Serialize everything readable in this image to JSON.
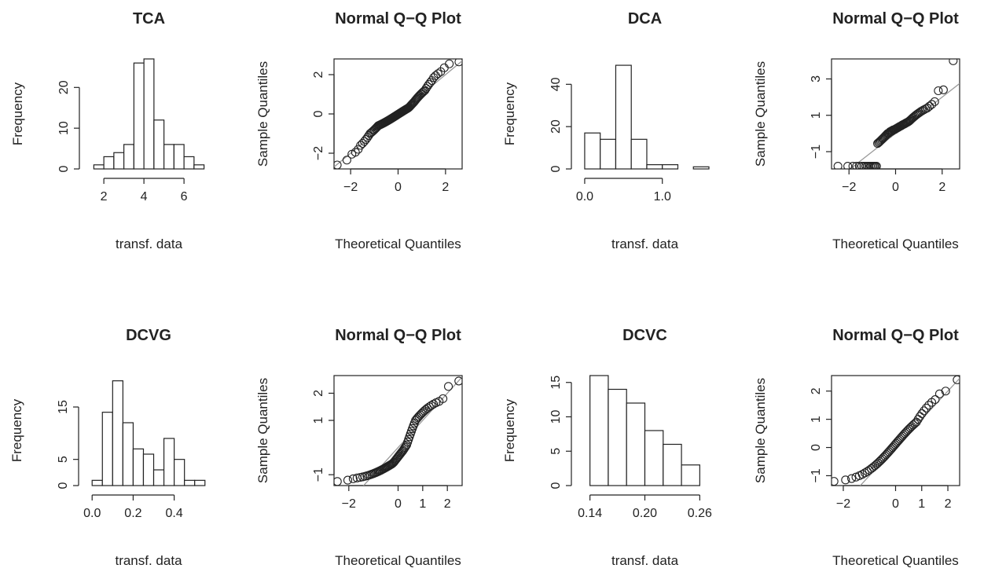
{
  "chart_data": [
    {
      "type": "bar",
      "title": "TCA",
      "xlabel": "transf. data",
      "ylabel": "Frequency",
      "bins": [
        [
          1.5,
          2.0
        ],
        [
          2.0,
          2.5
        ],
        [
          2.5,
          3.0
        ],
        [
          3.0,
          3.5
        ],
        [
          3.5,
          4.0
        ],
        [
          4.0,
          4.5
        ],
        [
          4.5,
          5.0
        ],
        [
          5.0,
          5.5
        ],
        [
          5.5,
          6.0
        ],
        [
          6.0,
          6.5
        ],
        [
          6.5,
          7.0
        ]
      ],
      "values": [
        1,
        3,
        4,
        6,
        26,
        27,
        12,
        6,
        6,
        3,
        1
      ],
      "xlim": [
        1.25,
        7.25
      ],
      "ylim": [
        0,
        27
      ],
      "xticks": [
        2,
        4,
        6
      ],
      "yticks": [
        0,
        10,
        20
      ]
    },
    {
      "type": "scatter",
      "title": "Normal Q−Q Plot",
      "xlabel": "Theoretical Quantiles",
      "ylabel": "Sample Quantiles",
      "qq_sample": [
        -2.6,
        -2.35,
        -2.05,
        -1.95,
        -1.8,
        -1.6,
        -1.5,
        -1.4,
        -1.3,
        -1.2,
        -1.1,
        -1.0,
        -0.95,
        -0.9,
        -0.85,
        -0.8,
        -0.75,
        -0.7,
        -0.65,
        -0.6,
        -0.58,
        -0.56,
        -0.54,
        -0.52,
        -0.5,
        -0.48,
        -0.46,
        -0.44,
        -0.42,
        -0.4,
        -0.38,
        -0.36,
        -0.34,
        -0.32,
        -0.3,
        -0.28,
        -0.26,
        -0.24,
        -0.22,
        -0.2,
        -0.18,
        -0.16,
        -0.14,
        -0.12,
        -0.1,
        -0.08,
        -0.06,
        -0.04,
        -0.02,
        0.0,
        0.02,
        0.04,
        0.06,
        0.08,
        0.1,
        0.12,
        0.14,
        0.16,
        0.18,
        0.2,
        0.22,
        0.24,
        0.26,
        0.28,
        0.3,
        0.33,
        0.36,
        0.4,
        0.44,
        0.48,
        0.52,
        0.56,
        0.6,
        0.65,
        0.7,
        0.75,
        0.8,
        0.85,
        0.9,
        0.95,
        1.0,
        1.05,
        1.1,
        1.15,
        1.2,
        1.3,
        1.4,
        1.5,
        1.6,
        1.7,
        1.85,
        1.95,
        2.05,
        2.15,
        2.35,
        2.55,
        2.65
      ],
      "line": {
        "slope": 1.0,
        "intercept": 0.0
      },
      "xlim": [
        -2.7,
        2.7
      ],
      "ylim": [
        -2.8,
        2.8
      ],
      "xticks": [
        -2,
        0,
        2
      ],
      "yticks": [
        -2,
        0,
        2
      ]
    },
    {
      "type": "bar",
      "title": "DCA",
      "xlabel": "transf. data",
      "ylabel": "Frequency",
      "bins": [
        [
          0.0,
          0.2
        ],
        [
          0.2,
          0.4
        ],
        [
          0.4,
          0.6
        ],
        [
          0.6,
          0.8
        ],
        [
          0.8,
          1.0
        ],
        [
          1.0,
          1.2
        ],
        [
          1.2,
          1.4
        ],
        [
          1.4,
          1.6
        ]
      ],
      "values": [
        17,
        14,
        49,
        14,
        2,
        2,
        0,
        1
      ],
      "xlim": [
        -0.05,
        1.6
      ],
      "ylim": [
        0,
        52
      ],
      "xticks": [
        0.0,
        1.0
      ],
      "yticks": [
        0,
        20,
        40
      ],
      "xtick_decimals": 1
    },
    {
      "type": "scatter",
      "title": "Normal Q−Q Plot",
      "xlabel": "Theoretical Quantiles",
      "ylabel": "Sample Quantiles",
      "qq_sample": [
        -1.8,
        -1.8,
        -1.8,
        -1.8,
        -1.8,
        -1.8,
        -1.8,
        -1.8,
        -1.8,
        -1.8,
        -1.8,
        -1.8,
        -1.8,
        -1.8,
        -1.8,
        -1.8,
        -0.55,
        -0.5,
        -0.45,
        -0.4,
        -0.35,
        -0.3,
        -0.25,
        -0.2,
        -0.15,
        -0.1,
        -0.05,
        0.0,
        0.0,
        0.05,
        0.1,
        0.1,
        0.15,
        0.15,
        0.2,
        0.2,
        0.22,
        0.25,
        0.27,
        0.3,
        0.32,
        0.35,
        0.38,
        0.4,
        0.42,
        0.45,
        0.48,
        0.5,
        0.52,
        0.55,
        0.58,
        0.6,
        0.63,
        0.66,
        0.7,
        0.75,
        0.8,
        0.85,
        0.9,
        0.95,
        1.0,
        1.05,
        1.1,
        1.15,
        1.2,
        1.25,
        1.3,
        1.35,
        1.4,
        1.5,
        1.6,
        1.75,
        2.35,
        2.4,
        4.0
      ],
      "line": {
        "slope": 1.0,
        "intercept": 0.0
      },
      "xlim": [
        -2.75,
        2.75
      ],
      "ylim": [
        -1.95,
        4.1
      ],
      "xticks": [
        -2,
        0,
        2
      ],
      "yticks": [
        -1,
        1,
        3
      ]
    },
    {
      "type": "bar",
      "title": "DCVG",
      "xlabel": "transf. data",
      "ylabel": "Frequency",
      "bins": [
        [
          0.0,
          0.05
        ],
        [
          0.05,
          0.1
        ],
        [
          0.1,
          0.15
        ],
        [
          0.15,
          0.2
        ],
        [
          0.2,
          0.25
        ],
        [
          0.25,
          0.3
        ],
        [
          0.3,
          0.35
        ],
        [
          0.35,
          0.4
        ],
        [
          0.4,
          0.45
        ],
        [
          0.45,
          0.5
        ],
        [
          0.5,
          0.55
        ]
      ],
      "values": [
        1,
        14,
        20,
        12,
        7,
        6,
        3,
        9,
        5,
        1,
        1
      ],
      "xlim": [
        -0.02,
        0.57
      ],
      "ylim": [
        0,
        21
      ],
      "xticks": [
        0.0,
        0.2,
        0.4
      ],
      "yticks": [
        0,
        5,
        15
      ],
      "xtick_decimals": 1
    },
    {
      "type": "scatter",
      "title": "Normal Q−Q Plot",
      "xlabel": "Theoretical Quantiles",
      "ylabel": "Sample Quantiles",
      "qq_sample": [
        -1.25,
        -1.2,
        -1.15,
        -1.12,
        -1.1,
        -1.08,
        -1.06,
        -1.04,
        -1.02,
        -1.0,
        -0.98,
        -0.96,
        -0.94,
        -0.92,
        -0.9,
        -0.88,
        -0.86,
        -0.84,
        -0.82,
        -0.8,
        -0.78,
        -0.76,
        -0.74,
        -0.72,
        -0.7,
        -0.68,
        -0.66,
        -0.64,
        -0.62,
        -0.6,
        -0.57,
        -0.54,
        -0.5,
        -0.46,
        -0.42,
        -0.38,
        -0.34,
        -0.3,
        -0.26,
        -0.22,
        -0.18,
        -0.14,
        -0.1,
        -0.05,
        0.0,
        0.05,
        0.1,
        0.2,
        0.3,
        0.4,
        0.5,
        0.6,
        0.7,
        0.8,
        0.9,
        1.0,
        1.05,
        1.1,
        1.15,
        1.2,
        1.25,
        1.3,
        1.35,
        1.4,
        1.45,
        1.5,
        1.55,
        1.6,
        1.65,
        1.7,
        1.8,
        2.25,
        2.45
      ],
      "line": {
        "slope": 1.0,
        "intercept": 0.0
      },
      "xlim": [
        -2.6,
        2.6
      ],
      "ylim": [
        -1.4,
        2.65
      ],
      "xticks": [
        -2,
        0,
        1,
        2
      ],
      "yticks": [
        -1,
        1,
        2
      ]
    },
    {
      "type": "bar",
      "title": "DCVC",
      "xlabel": "transf. data",
      "ylabel": "Frequency",
      "bins": [
        [
          0.14,
          0.16
        ],
        [
          0.16,
          0.18
        ],
        [
          0.18,
          0.2
        ],
        [
          0.2,
          0.22
        ],
        [
          0.22,
          0.24
        ],
        [
          0.24,
          0.26
        ]
      ],
      "values": [
        16,
        14,
        12,
        8,
        6,
        3
      ],
      "xlim": [
        0.13,
        0.27
      ],
      "ylim": [
        0,
        16
      ],
      "xticks": [
        0.14,
        0.2,
        0.26
      ],
      "yticks": [
        0,
        5,
        10,
        15
      ],
      "xtick_decimals": 2
    },
    {
      "type": "scatter",
      "title": "Normal Q−Q Plot",
      "xlabel": "Theoretical Quantiles",
      "ylabel": "Sample Quantiles",
      "qq_sample": [
        -1.2,
        -1.15,
        -1.1,
        -1.05,
        -1.0,
        -0.95,
        -0.9,
        -0.85,
        -0.8,
        -0.75,
        -0.7,
        -0.65,
        -0.6,
        -0.55,
        -0.5,
        -0.45,
        -0.4,
        -0.35,
        -0.3,
        -0.25,
        -0.2,
        -0.15,
        -0.1,
        -0.05,
        0.0,
        0.05,
        0.1,
        0.15,
        0.2,
        0.25,
        0.3,
        0.35,
        0.4,
        0.45,
        0.5,
        0.55,
        0.6,
        0.65,
        0.7,
        0.75,
        0.8,
        0.85,
        0.9,
        1.0,
        1.1,
        1.2,
        1.3,
        1.4,
        1.5,
        1.6,
        1.7,
        1.9,
        2.0,
        2.4
      ],
      "line": {
        "slope": 1.0,
        "intercept": 0.0
      },
      "xlim": [
        -2.45,
        2.45
      ],
      "ylim": [
        -1.35,
        2.55
      ],
      "xticks": [
        -2,
        0,
        1,
        2
      ],
      "yticks": [
        -1,
        0,
        1,
        2
      ]
    }
  ]
}
